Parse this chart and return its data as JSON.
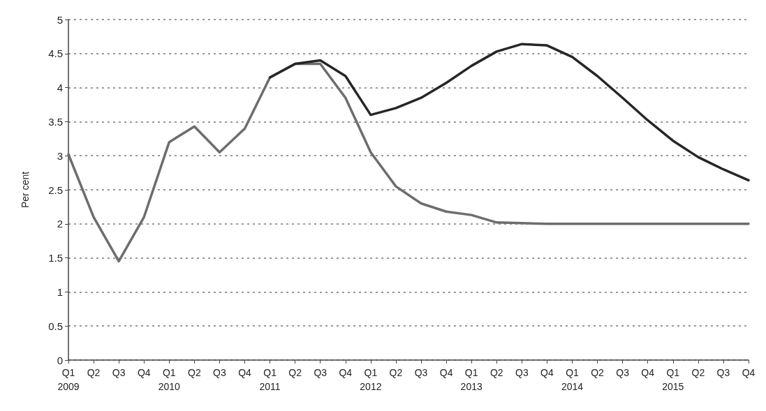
{
  "chart_data": {
    "type": "line",
    "ylabel": "Per cent",
    "categories": [
      "Q1\n2009",
      "Q2",
      "Q3",
      "Q4",
      "Q1\n2010",
      "Q2",
      "Q3",
      "Q4",
      "Q1\n2011",
      "Q2",
      "Q3",
      "Q4",
      "Q1\n2012",
      "Q2",
      "Q3",
      "Q4",
      "Q1\n2013",
      "Q2",
      "Q3",
      "Q4",
      "Q1\n2014",
      "Q2",
      "Q3",
      "Q4",
      "Q1\n2015",
      "Q2",
      "Q3",
      "Q4"
    ],
    "series": [
      {
        "color": "#6d6d6d",
        "values": [
          3.02,
          2.1,
          1.45,
          2.1,
          3.2,
          3.43,
          3.05,
          3.4,
          4.15,
          4.35,
          4.35,
          3.85,
          3.05,
          2.55,
          2.3,
          2.18,
          2.13,
          2.02,
          2.01,
          2.0,
          2.0,
          2.0,
          2.0,
          2.0,
          2.0,
          2.0,
          2.0,
          2.0
        ]
      },
      {
        "color": "#262626",
        "values": [
          null,
          null,
          null,
          null,
          null,
          null,
          null,
          null,
          4.15,
          4.35,
          4.4,
          4.17,
          3.6,
          3.7,
          3.85,
          4.07,
          4.32,
          4.53,
          4.64,
          4.62,
          4.45,
          4.17,
          3.85,
          3.52,
          3.22,
          2.98,
          2.8,
          2.64
        ]
      }
    ],
    "ylim": [
      0,
      5
    ],
    "yticks": [
      0,
      0.5,
      1,
      1.5,
      2,
      2.5,
      3,
      3.5,
      4,
      4.5,
      5
    ],
    "grid": "y",
    "marker": "none",
    "line_style": "solid"
  }
}
